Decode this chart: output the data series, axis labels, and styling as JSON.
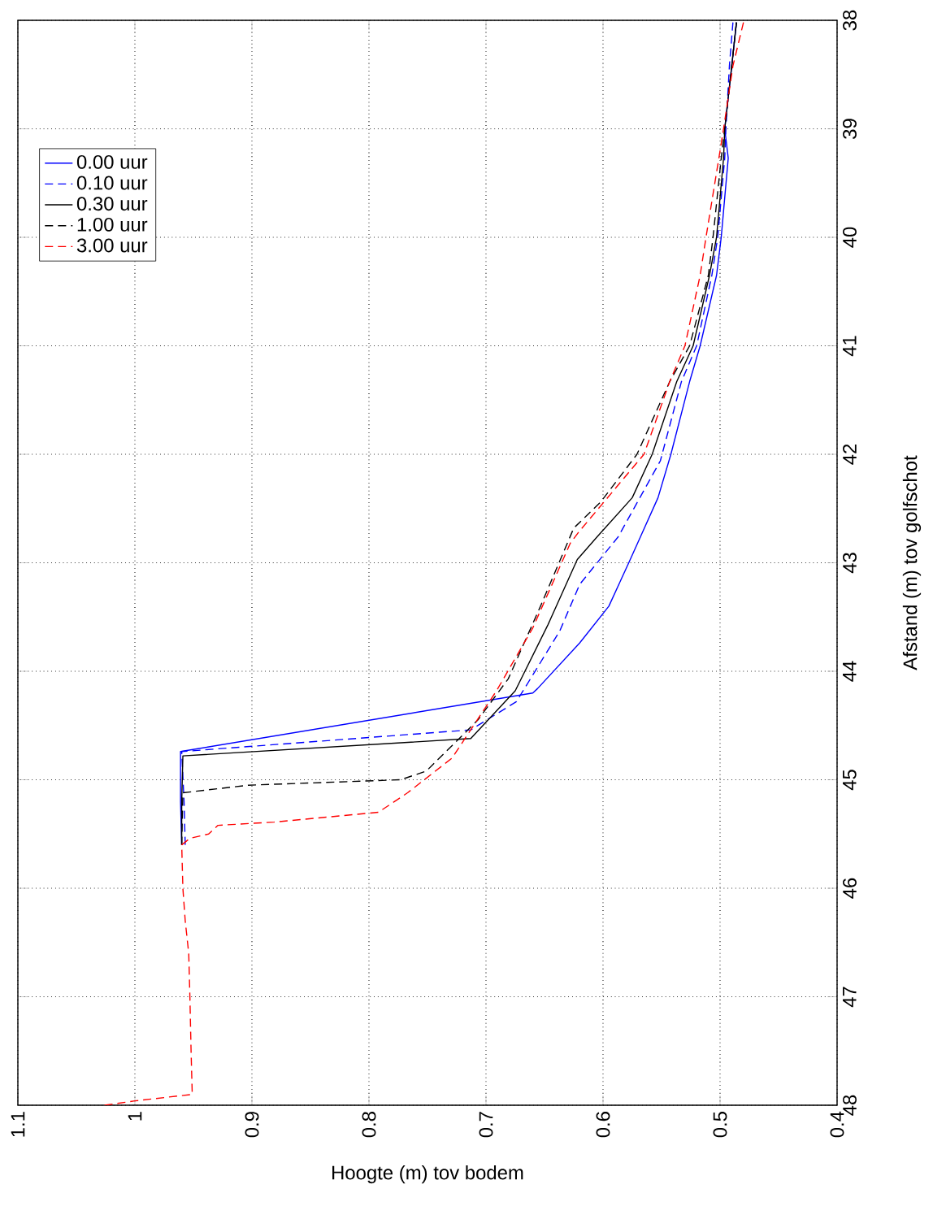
{
  "chart_data": {
    "type": "line",
    "xlabel": "Hoogte (m) tov bodem",
    "ylabel": "Afstand (m) tov golfschot",
    "xlim": [
      1.1,
      0.4
    ],
    "ylim": [
      48,
      38
    ],
    "xticks": [
      0.4,
      0.5,
      0.6,
      0.7,
      0.8,
      0.9,
      1,
      1.1
    ],
    "yticks": [
      38,
      39,
      40,
      41,
      42,
      43,
      44,
      45,
      46,
      47,
      48
    ],
    "grid": true,
    "legend": "top left",
    "marker": "none",
    "series": [
      {
        "name": "0.00 uur",
        "color": "#0000ff",
        "line_style": "solid",
        "values": [
          45.6,
          45.2,
          44.74,
          44.2,
          44.16,
          43.74,
          43.4,
          43.0,
          42.76,
          42.4,
          42.0,
          41.33,
          41.0,
          40.35,
          40.0,
          39.27,
          39.0,
          38.42,
          38.02
        ],
        "x": [
          0.96,
          0.961,
          0.961,
          0.66,
          0.656,
          0.62,
          0.595,
          0.578,
          0.568,
          0.553,
          0.542,
          0.526,
          0.517,
          0.503,
          0.499,
          0.493,
          0.496,
          0.49,
          0.486
        ]
      },
      {
        "name": "0.10 uur",
        "color": "#0000ff",
        "line_style": "dashed",
        "values": [
          45.6,
          45.2,
          44.74,
          44.54,
          44.28,
          43.63,
          43.2,
          42.76,
          42.06,
          41.33,
          41.0,
          40.35,
          40.0,
          39.27,
          39.0,
          38.42,
          38.02
        ],
        "x": [
          0.957,
          0.958,
          0.96,
          0.713,
          0.674,
          0.637,
          0.62,
          0.587,
          0.551,
          0.533,
          0.52,
          0.507,
          0.502,
          0.496,
          0.495,
          0.492,
          0.489
        ]
      },
      {
        "name": "0.30 uur",
        "color": "#000000",
        "line_style": "solid",
        "values": [
          45.6,
          45.2,
          44.78,
          44.62,
          44.18,
          43.57,
          42.97,
          42.76,
          42.4,
          42.0,
          41.33,
          41.0,
          40.35,
          40.0,
          39.27,
          39.0,
          38.42,
          38.02
        ],
        "x": [
          0.96,
          0.96,
          0.959,
          0.713,
          0.675,
          0.647,
          0.622,
          0.605,
          0.575,
          0.558,
          0.537,
          0.523,
          0.509,
          0.503,
          0.497,
          0.496,
          0.49,
          0.486
        ]
      },
      {
        "name": "1.00 uur",
        "color": "#000000",
        "line_style": "dashed",
        "values": [
          45.6,
          45.12,
          45.05,
          45.0,
          44.92,
          44.45,
          44.07,
          43.39,
          42.68,
          42.44,
          42.0,
          41.33,
          41.0,
          40.35,
          40.0,
          39.27,
          39.0,
          38.42,
          38.02
        ],
        "x": [
          0.96,
          0.959,
          0.903,
          0.773,
          0.751,
          0.707,
          0.681,
          0.653,
          0.625,
          0.602,
          0.571,
          0.543,
          0.526,
          0.51,
          0.506,
          0.499,
          0.496,
          0.49,
          0.486
        ]
      },
      {
        "name": "3.00 uur",
        "color": "#ff0000",
        "line_style": "dashed",
        "values": [
          48,
          47.96,
          47.9,
          47.5,
          47.0,
          46.6,
          46.3,
          46.0,
          45.6,
          45.54,
          45.5,
          45.42,
          45.39,
          45.3,
          45.12,
          44.8,
          44.18,
          43.6,
          42.82,
          42.72,
          42.0,
          41.33,
          41.0,
          40.35,
          40.0,
          39.27,
          39.0,
          38.42,
          38.02
        ],
        "x": [
          1.026,
          1.0,
          0.951,
          0.952,
          0.953,
          0.954,
          0.957,
          0.959,
          0.96,
          0.953,
          0.937,
          0.929,
          0.881,
          0.792,
          0.767,
          0.729,
          0.691,
          0.66,
          0.628,
          0.621,
          0.565,
          0.543,
          0.53,
          0.517,
          0.512,
          0.501,
          0.497,
          0.489,
          0.48
        ]
      }
    ]
  }
}
